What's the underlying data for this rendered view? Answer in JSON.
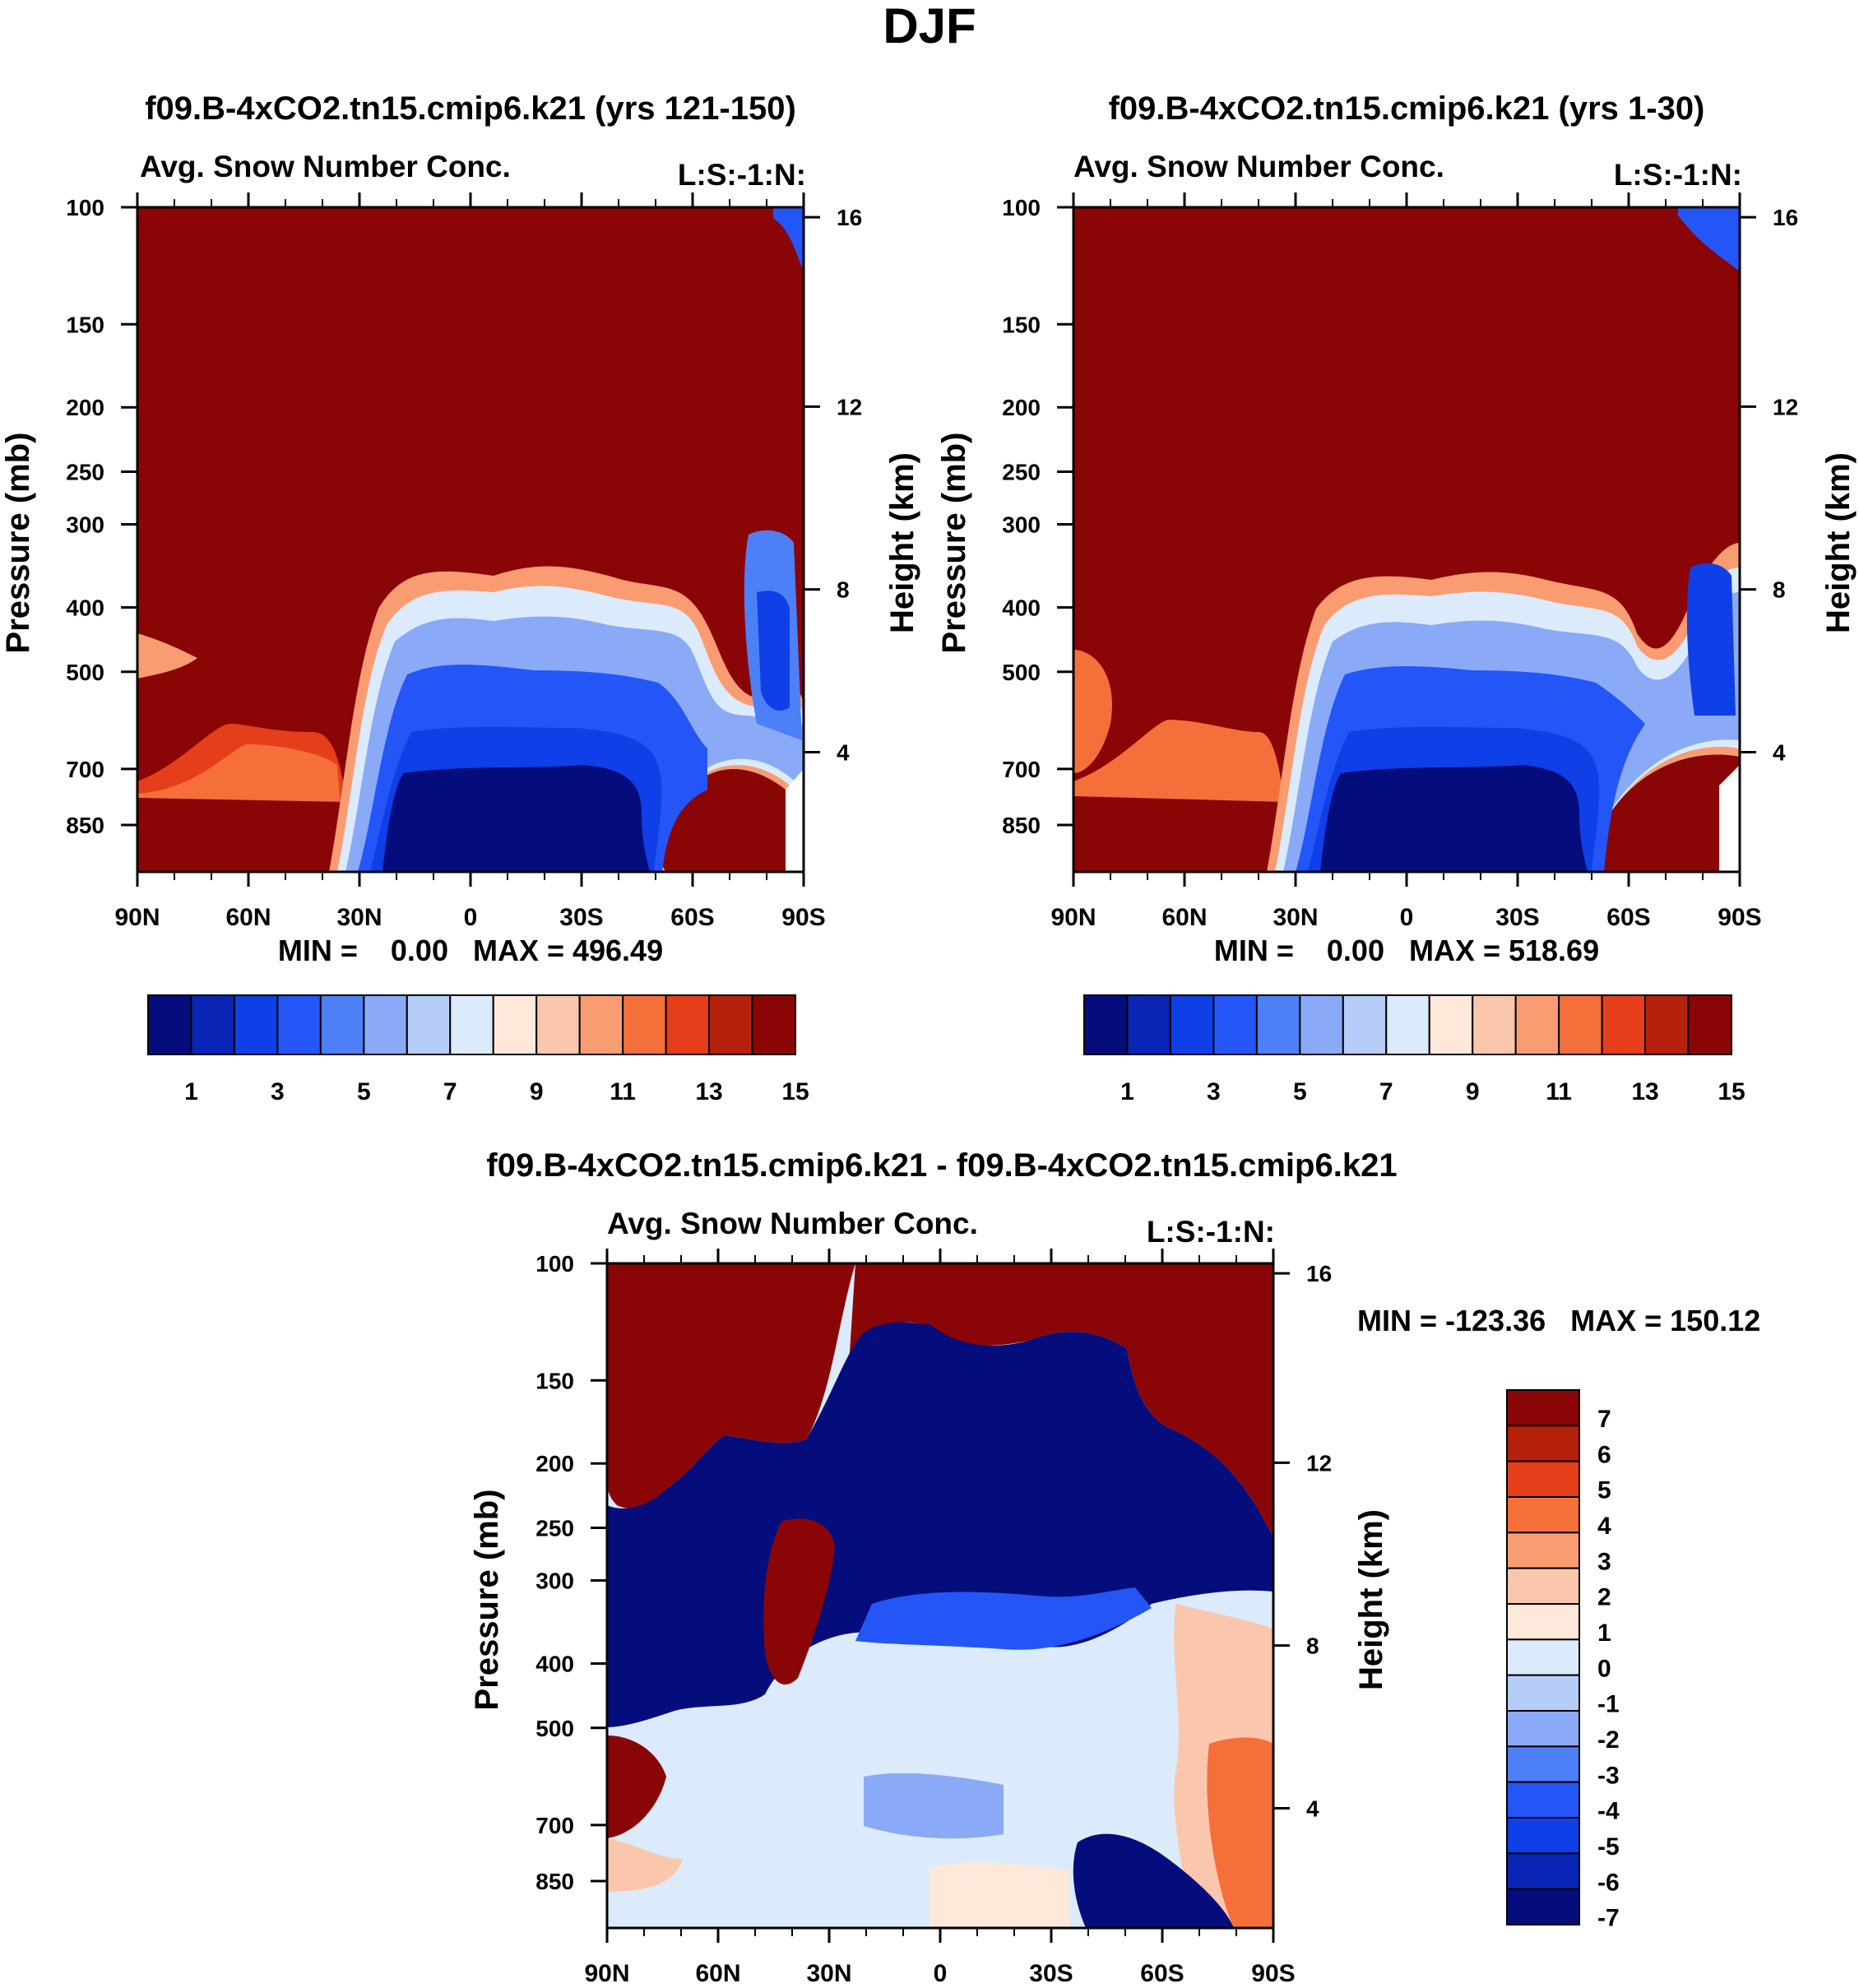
{
  "page_title": "DJF",
  "colors": {
    "seq": [
      "#050d7c",
      "#0a24b5",
      "#0f3fe6",
      "#2456f7",
      "#4d7ff7",
      "#8aaaf7",
      "#b7cdf9",
      "#dcebfb",
      "#fde8d9",
      "#fbc7ac",
      "#f99c72",
      "#f56f3a",
      "#e53e1a",
      "#b5210d",
      "#8a0505"
    ],
    "diff": [
      "#050d7c",
      "#0a24b5",
      "#0f3fe6",
      "#2456f7",
      "#4d7ff7",
      "#8aaaf7",
      "#b7cdf9",
      "#dcebfb",
      "#fde8d9",
      "#fbc7ac",
      "#f99c72",
      "#f56f3a",
      "#e53e1a",
      "#b5210d",
      "#8a0505"
    ]
  },
  "chart_data": [
    {
      "id": "panel-1",
      "type": "contour",
      "title": "f09.B-4xCO2.tn15.cmip6.k21 (yrs 121-150)",
      "left_label": "Avg. Snow Number Conc.",
      "right_label": "L:S:-1:N:",
      "xlabel": "",
      "ylabel": "Pressure (mb)",
      "y2label": "Height (km)",
      "x_ticks": [
        "90N",
        "60N",
        "30N",
        "0",
        "30S",
        "60S",
        "90S"
      ],
      "y_ticks": [
        "100",
        "150",
        "200",
        "250",
        "300",
        "400",
        "500",
        "700",
        "850"
      ],
      "y2_ticks": [
        "16",
        "12",
        "8",
        "4"
      ],
      "stats": "MIN =    0.00   MAX = 496.49",
      "min": 0.0,
      "max": 496.49,
      "colorbar_labels": [
        "1",
        "3",
        "5",
        "7",
        "9",
        "11",
        "13",
        "15"
      ],
      "levels": [
        1,
        2,
        3,
        4,
        5,
        6,
        7,
        8,
        9,
        10,
        11,
        12,
        13,
        14
      ]
    },
    {
      "id": "panel-2",
      "type": "contour",
      "title": "f09.B-4xCO2.tn15.cmip6.k21 (yrs 1-30)",
      "left_label": "Avg. Snow Number Conc.",
      "right_label": "L:S:-1:N:",
      "xlabel": "",
      "ylabel": "Pressure (mb)",
      "y2label": "Height (km)",
      "x_ticks": [
        "90N",
        "60N",
        "30N",
        "0",
        "30S",
        "60S",
        "90S"
      ],
      "y_ticks": [
        "100",
        "150",
        "200",
        "250",
        "300",
        "400",
        "500",
        "700",
        "850"
      ],
      "y2_ticks": [
        "16",
        "12",
        "8",
        "4"
      ],
      "stats": "MIN =    0.00   MAX = 518.69",
      "min": 0.0,
      "max": 518.69,
      "colorbar_labels": [
        "1",
        "3",
        "5",
        "7",
        "9",
        "11",
        "13",
        "15"
      ],
      "levels": [
        1,
        2,
        3,
        4,
        5,
        6,
        7,
        8,
        9,
        10,
        11,
        12,
        13,
        14
      ]
    },
    {
      "id": "panel-diff",
      "type": "contour",
      "title": "f09.B-4xCO2.tn15.cmip6.k21 - f09.B-4xCO2.tn15.cmip6.k21",
      "left_label": "Avg. Snow Number Conc.",
      "right_label": "L:S:-1:N:",
      "xlabel": "",
      "ylabel": "Pressure (mb)",
      "y2label": "Height (km)",
      "x_ticks": [
        "90N",
        "60N",
        "30N",
        "0",
        "30S",
        "60S",
        "90S"
      ],
      "y_ticks": [
        "100",
        "150",
        "200",
        "250",
        "300",
        "400",
        "500",
        "700",
        "850"
      ],
      "y2_ticks": [
        "16",
        "12",
        "8",
        "4"
      ],
      "stats": "MIN = -123.36   MAX = 150.12",
      "min": -123.36,
      "max": 150.12,
      "colorbar_labels": [
        "7",
        "6",
        "5",
        "4",
        "3",
        "2",
        "1",
        "0",
        "-1",
        "-2",
        "-3",
        "-4",
        "-5",
        "-6",
        "-7"
      ],
      "levels": [
        -7,
        -6,
        -5,
        -4,
        -3,
        -2,
        -1,
        0,
        1,
        2,
        3,
        4,
        5,
        6,
        7
      ]
    }
  ]
}
